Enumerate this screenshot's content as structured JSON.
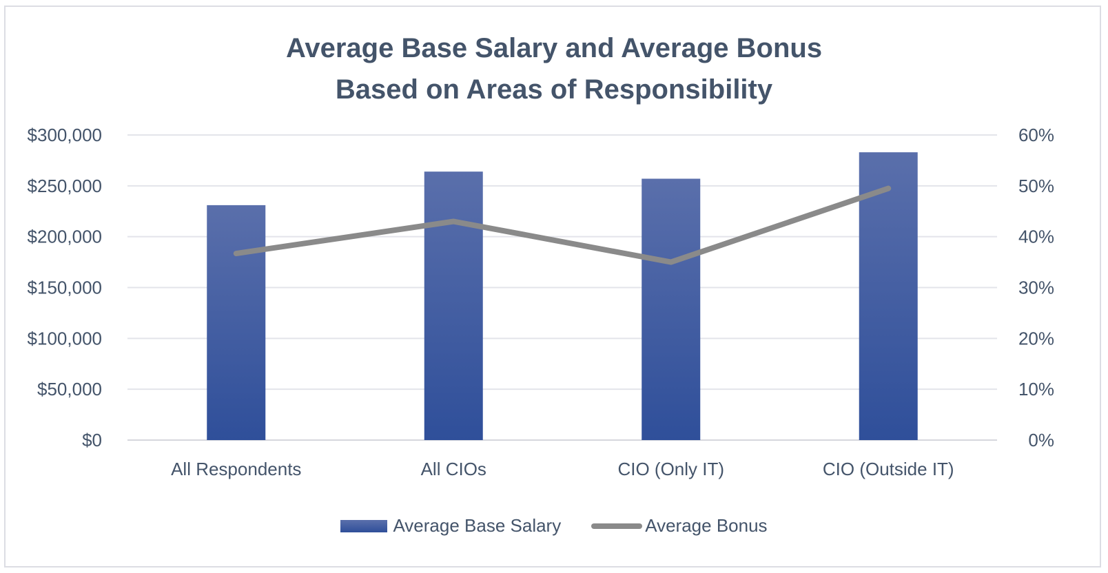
{
  "chart_data": {
    "type": "bar",
    "title": [
      "Average Base Salary and Average Bonus",
      "Based on Areas of Responsibility"
    ],
    "categories": [
      "All Respondents",
      "All CIOs",
      "CIO (Only IT)",
      "CIO (Outside IT)"
    ],
    "series": [
      {
        "name": "Average Base Salary",
        "type": "bar",
        "axis": "left",
        "color": "#2f4f9a",
        "values": [
          231000,
          264000,
          257000,
          283000
        ]
      },
      {
        "name": "Average Bonus",
        "type": "line",
        "axis": "right",
        "color": "#8a8a8a",
        "values": [
          0.367,
          0.43,
          0.35,
          0.495
        ]
      }
    ],
    "y_left": {
      "ylim": [
        0,
        300000
      ],
      "ticks": [
        0,
        50000,
        100000,
        150000,
        200000,
        250000,
        300000
      ],
      "tick_labels": [
        "$0",
        "$50,000",
        "$100,000",
        "$150,000",
        "$200,000",
        "$250,000",
        "$300,000"
      ]
    },
    "y_right": {
      "ylim": [
        0,
        0.6
      ],
      "ticks": [
        0,
        0.1,
        0.2,
        0.3,
        0.4,
        0.5,
        0.6
      ],
      "tick_labels": [
        "0%",
        "10%",
        "20%",
        "30%",
        "40%",
        "50%",
        "60%"
      ]
    },
    "grid": true,
    "legend_position": "bottom"
  }
}
